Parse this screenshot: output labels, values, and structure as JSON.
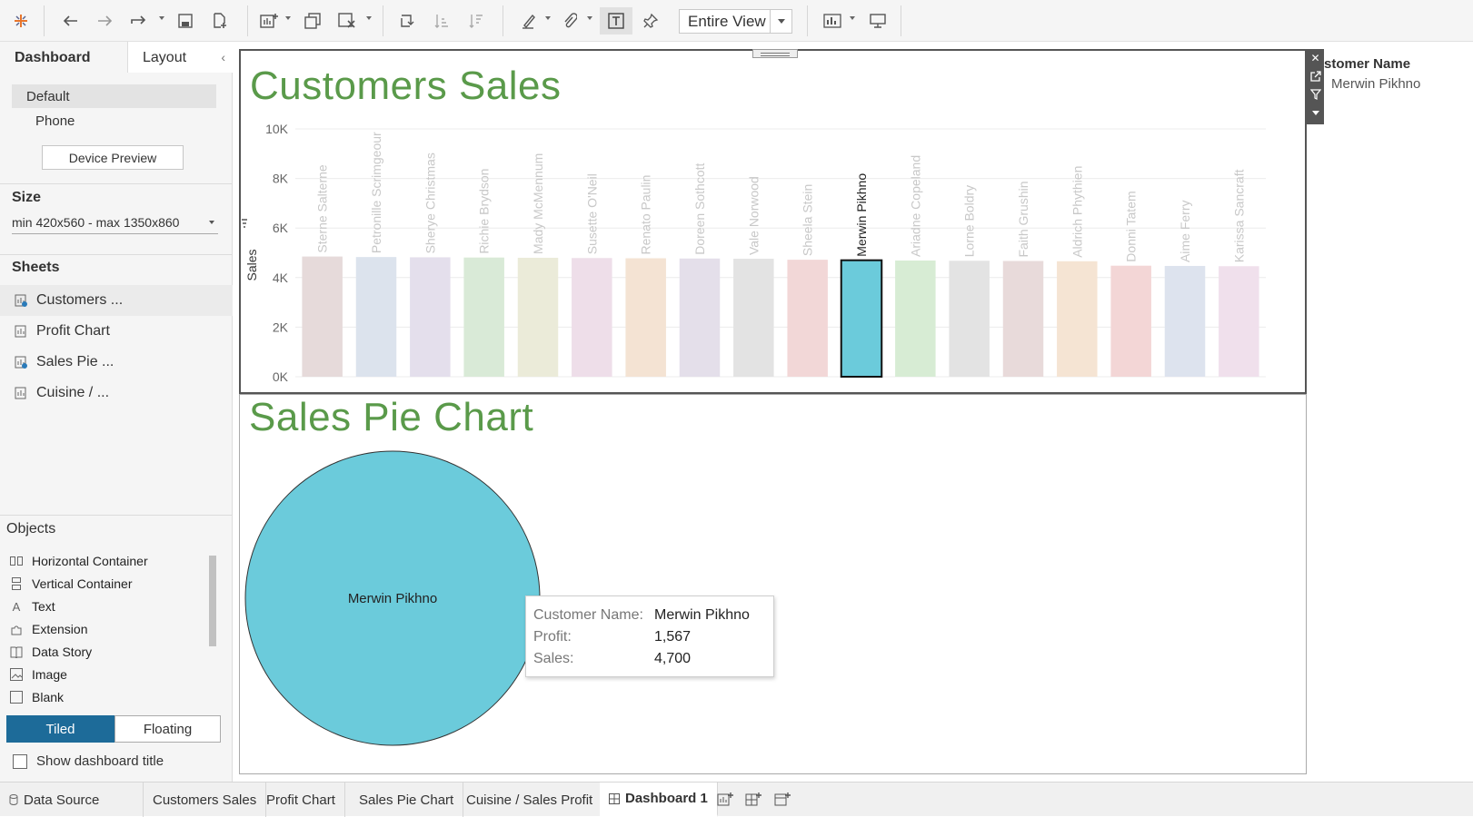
{
  "toolbar": {
    "view_select": "Entire View"
  },
  "left_panel": {
    "tabs": {
      "dashboard": "Dashboard",
      "layout": "Layout"
    },
    "devices": {
      "default": "Default",
      "phone": "Phone",
      "preview_button": "Device Preview"
    },
    "size": {
      "title": "Size",
      "value": "min 420x560 - max 1350x860"
    },
    "sheets": {
      "title": "Sheets",
      "items": [
        {
          "label": "Customers ..."
        },
        {
          "label": "Profit Chart"
        },
        {
          "label": "Sales Pie ..."
        },
        {
          "label": "Cuisine / ..."
        }
      ]
    },
    "objects": {
      "title": "Objects",
      "items": [
        {
          "label": "Horizontal Container"
        },
        {
          "label": "Vertical Container"
        },
        {
          "label": "Text"
        },
        {
          "label": "Extension"
        },
        {
          "label": "Data Story"
        },
        {
          "label": "Image"
        },
        {
          "label": "Blank"
        }
      ],
      "tiled": "Tiled",
      "floating": "Floating",
      "show_title": "Show dashboard title"
    }
  },
  "legend": {
    "title": "stomer Name",
    "item": "Merwin Pikhno"
  },
  "tooltip": {
    "rows": [
      {
        "key": "Customer Name:",
        "value": "Merwin Pikhno"
      },
      {
        "key": "Profit:",
        "value": "1,567"
      },
      {
        "key": "Sales:",
        "value": "4,700"
      }
    ]
  },
  "pie_label": "Merwin Pikhno",
  "bottom_tabs": {
    "data_source": "Data Source",
    "tabs": [
      "Customers Sales",
      "Profit Chart",
      "Sales Pie Chart",
      "Cuisine / Sales Profit",
      "Dashboard 1"
    ]
  },
  "colors": {
    "title_green": "#5a9a4a",
    "highlight": "#6bcbdb",
    "tiled_blue": "#1d6b99"
  },
  "chart_data": [
    {
      "type": "bar",
      "title": "Customers Sales",
      "ylabel": "Sales",
      "xlabel": "",
      "ylim": [
        0,
        10000
      ],
      "yticks": [
        "0K",
        "2K",
        "4K",
        "6K",
        "8K",
        "10K"
      ],
      "tick_values": [
        0,
        2000,
        4000,
        6000,
        8000,
        10000
      ],
      "categories": [
        "Sterne Salterne",
        "Petronille Scrimgeour",
        "Sherye Christmas",
        "Richie Brydson",
        "Mady McMennum",
        "Susette O'Neil",
        "Renato Paulin",
        "Doreen Sothcott",
        "Vale Norwood",
        "Sheela Stein",
        "Merwin Pikhno",
        "Ariadne Copeland",
        "Lorne Boldry",
        "Faith Grushin",
        "Aldrich Phythien",
        "Donni Tatem",
        "Aime Ferry",
        "Karissa Sancraft"
      ],
      "values": [
        4850,
        4830,
        4820,
        4810,
        4800,
        4790,
        4780,
        4770,
        4760,
        4720,
        4700,
        4690,
        4680,
        4670,
        4660,
        4480,
        4470,
        4460
      ],
      "highlighted": "Merwin Pikhno",
      "bar_colors": [
        "#e6dada",
        "#dce3ed",
        "#e4dfec",
        "#d9ead7",
        "#ebebd9",
        "#eedee9",
        "#f4e3d3",
        "#e4dfea",
        "#e3e3e3",
        "#f2d7d7",
        "#6bcbdb",
        "#d7ecd4",
        "#e3e3e3",
        "#e8dada",
        "#f5e4d3",
        "#f3d6d6",
        "#dde3ee",
        "#f0e0ec"
      ]
    },
    {
      "type": "pie",
      "title": "Sales Pie Chart",
      "slices": [
        {
          "label": "Merwin Pikhno",
          "value": 4700,
          "color": "#6bcbdb"
        }
      ]
    }
  ]
}
